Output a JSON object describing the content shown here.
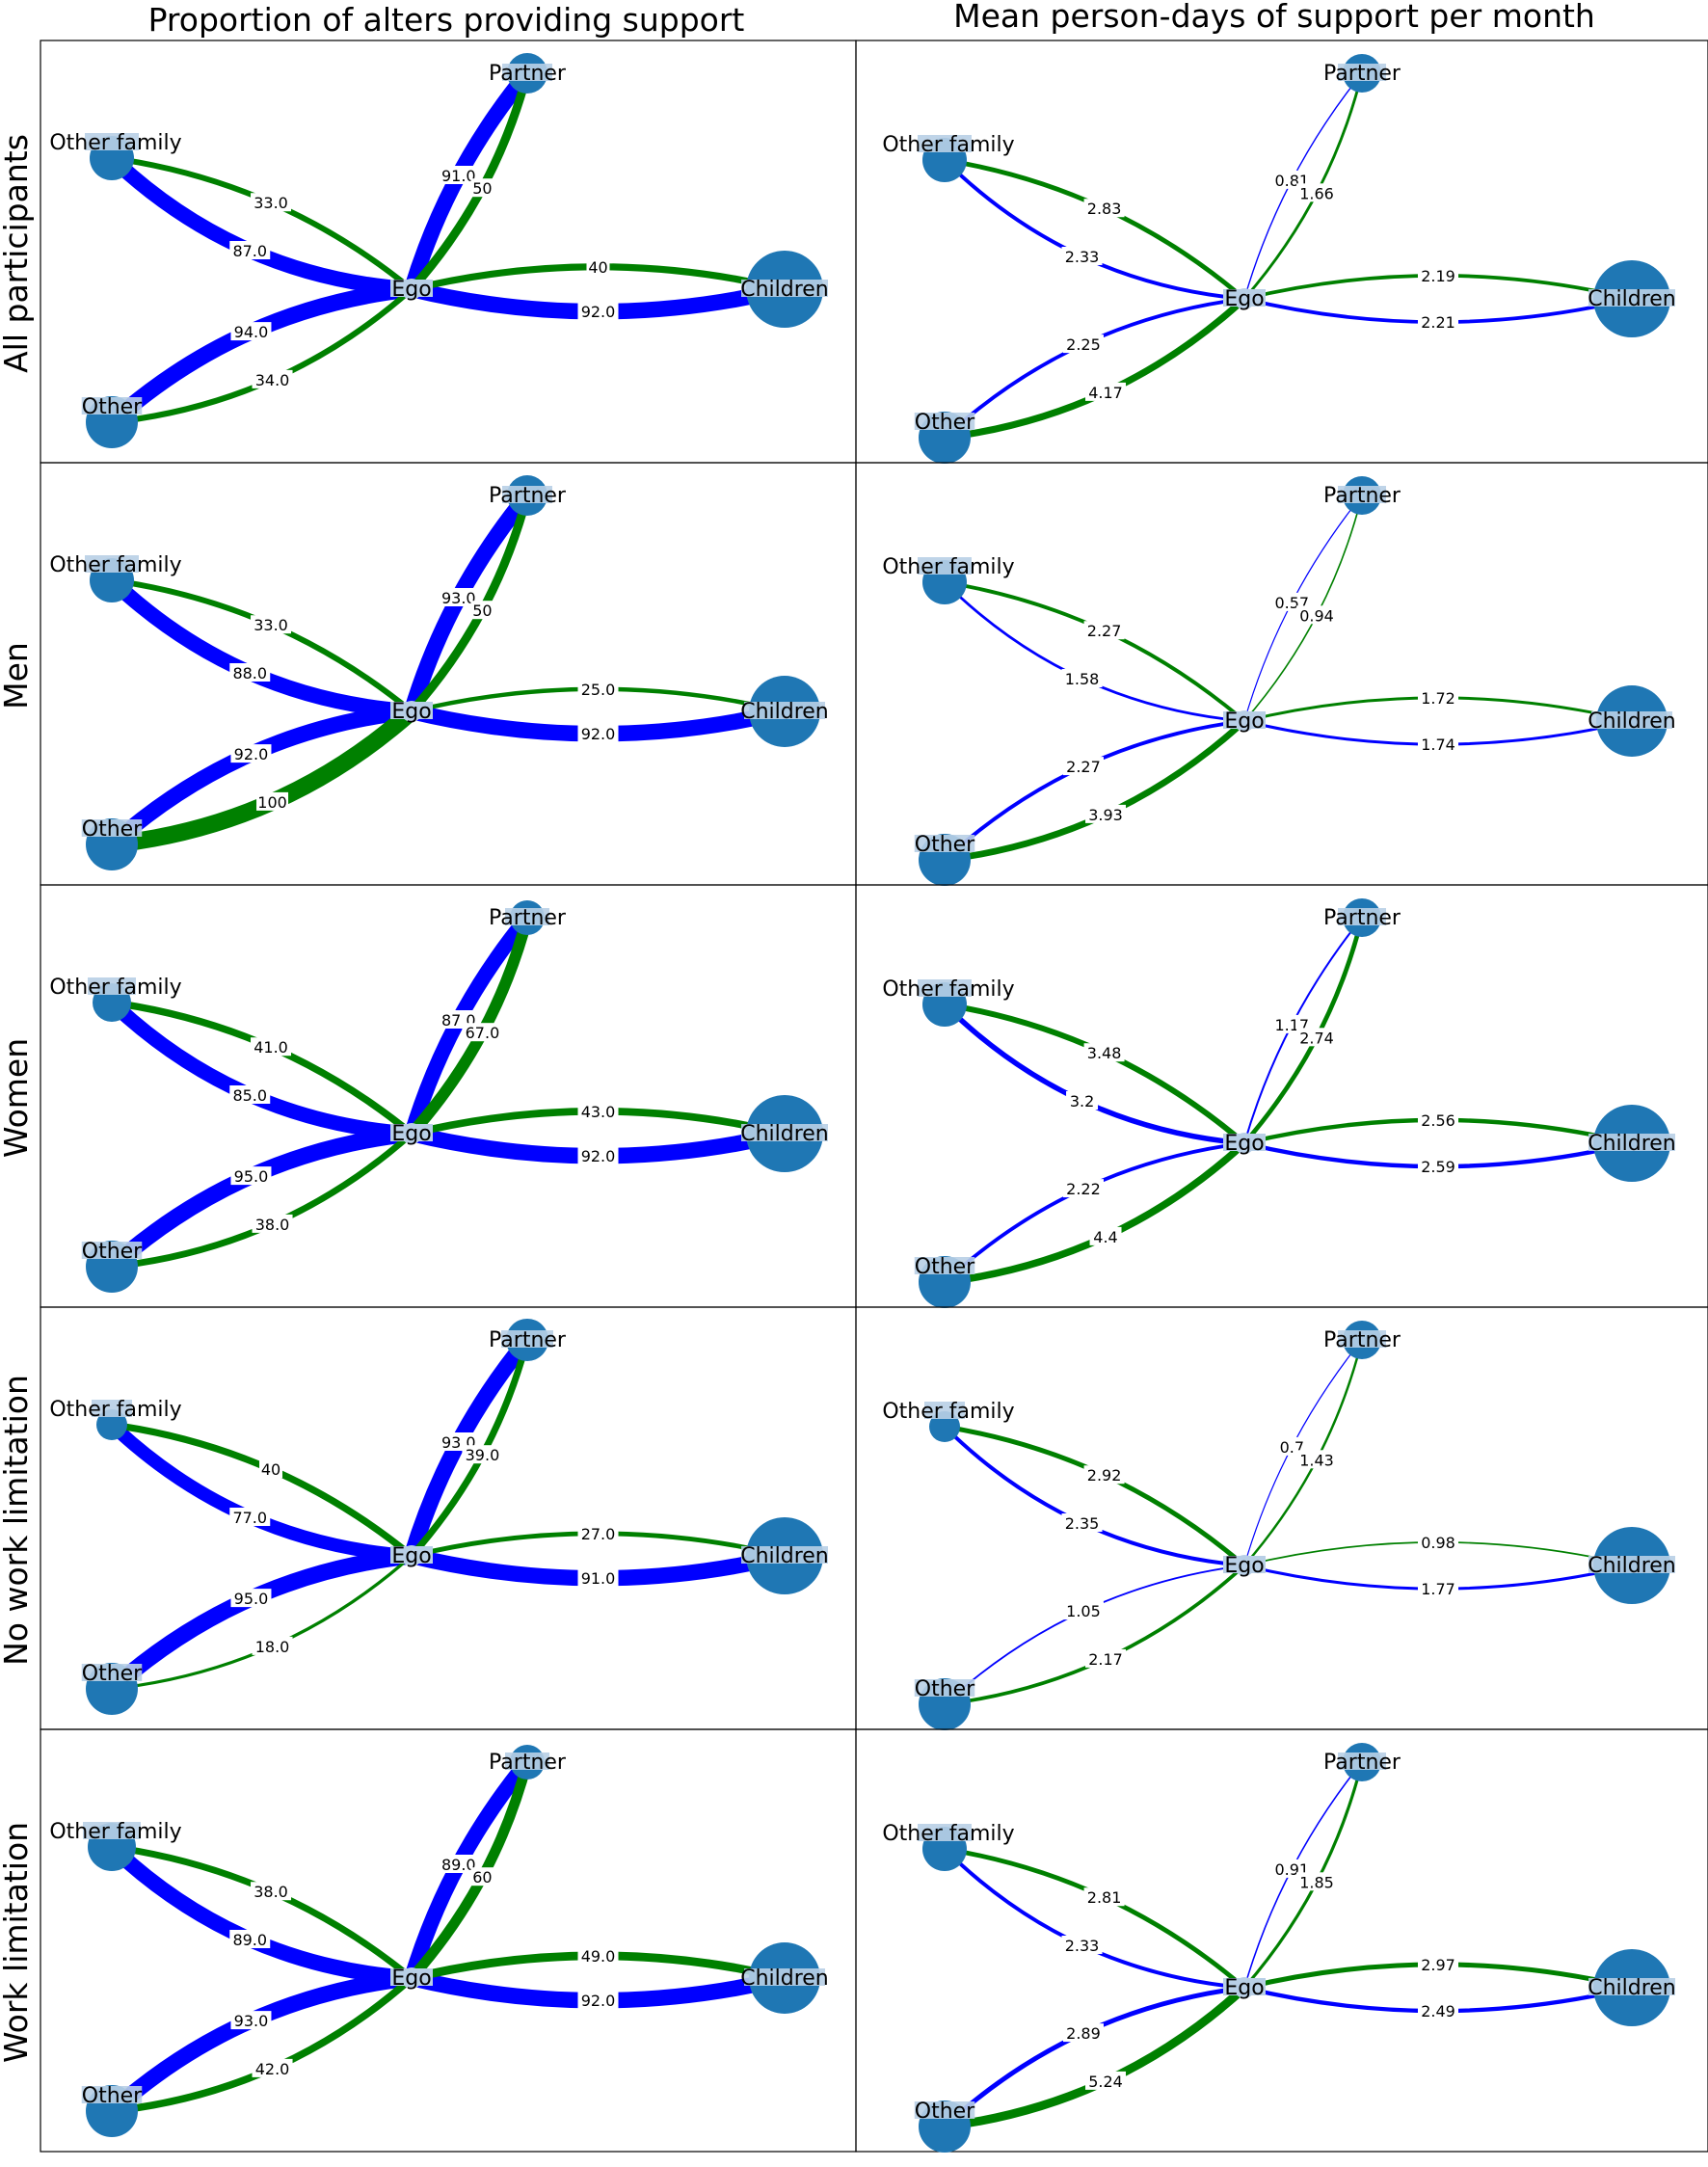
{
  "figure": {
    "column_titles": [
      "Proportion of alters providing support",
      "Mean person-days of support per month"
    ],
    "row_labels": [
      "All participants",
      "Men",
      "Women",
      "No work limitation",
      "Work limitation"
    ],
    "colors": {
      "node_fill": "#1f77b4",
      "node_label_box": "#b8cfe6",
      "edge_blue": "#0000ff",
      "edge_green": "#008000"
    }
  },
  "chart_data": {
    "type": "network",
    "nodes": [
      "Ego",
      "Partner",
      "Other family",
      "Other",
      "Children"
    ],
    "node_labels": {
      "ego": "Ego",
      "partner": "Partner",
      "other_family": "Other family",
      "other": "Other",
      "children": "Children"
    },
    "edge_color_legend": "",
    "proportion": [
      {
        "row": "All participants",
        "node_size": {
          "partner": 21,
          "other_family": 23,
          "other": 27,
          "children": 40
        },
        "edges": {
          "partner": {
            "green": "50",
            "blue": "91.0"
          },
          "other_family": {
            "blue": "87.0",
            "green": "33.0"
          },
          "other": {
            "blue": "94.0",
            "green": "34.0"
          },
          "children": {
            "green": "40",
            "blue": "92.0"
          }
        }
      },
      {
        "row": "Men",
        "node_size": {
          "partner": 21,
          "other_family": 23,
          "other": 27,
          "children": 37
        },
        "edges": {
          "partner": {
            "green": "50",
            "blue": "93.0"
          },
          "other_family": {
            "blue": "88.0",
            "green": "33.0"
          },
          "other": {
            "blue": "92.0",
            "green": "100"
          },
          "children": {
            "green": "25.0",
            "blue": "92.0"
          }
        }
      },
      {
        "row": "Women",
        "node_size": {
          "partner": 18,
          "other_family": 20,
          "other": 27,
          "children": 40
        },
        "edges": {
          "partner": {
            "green": "67.0",
            "blue": "87.0"
          },
          "other_family": {
            "blue": "85.0",
            "green": "41.0"
          },
          "other": {
            "blue": "95.0",
            "green": "38.0"
          },
          "children": {
            "green": "43.0",
            "blue": "92.0"
          }
        }
      },
      {
        "row": "No work limitation",
        "node_size": {
          "partner": 22,
          "other_family": 16,
          "other": 27,
          "children": 40
        },
        "edges": {
          "partner": {
            "green": "39.0",
            "blue": "93.0"
          },
          "other_family": {
            "blue": "77.0",
            "green": "40"
          },
          "other": {
            "blue": "95.0",
            "green": "18.0"
          },
          "children": {
            "green": "27.0",
            "blue": "91.0"
          }
        }
      },
      {
        "row": "Work limitation",
        "node_size": {
          "partner": 18,
          "other_family": 25,
          "other": 27,
          "children": 37
        },
        "edges": {
          "partner": {
            "green": "60",
            "blue": "89.0"
          },
          "other_family": {
            "blue": "89.0",
            "green": "38.0"
          },
          "other": {
            "blue": "93.0",
            "green": "42.0"
          },
          "children": {
            "green": "49.0",
            "blue": "92.0"
          }
        }
      }
    ],
    "person_days": [
      {
        "row": "All participants",
        "node_size": {
          "partner": 20,
          "other_family": 23,
          "other": 27,
          "children": 40
        },
        "edges": {
          "partner": {
            "green": "1.66",
            "blue": "0.81"
          },
          "other_family": {
            "blue": "2.33",
            "green": "2.83"
          },
          "other": {
            "blue": "2.25",
            "green": "4.17"
          },
          "children": {
            "green": "2.19",
            "blue": "2.21"
          }
        }
      },
      {
        "row": "Men",
        "node_size": {
          "partner": 20,
          "other_family": 23,
          "other": 27,
          "children": 37
        },
        "edges": {
          "partner": {
            "green": "0.94",
            "blue": "0.57"
          },
          "other_family": {
            "blue": "1.58",
            "green": "2.27"
          },
          "other": {
            "blue": "2.27",
            "green": "3.93"
          },
          "children": {
            "green": "1.72",
            "blue": "1.74"
          }
        }
      },
      {
        "row": "Women",
        "node_size": {
          "partner": 20,
          "other_family": 23,
          "other": 27,
          "children": 40
        },
        "edges": {
          "partner": {
            "green": "2.74",
            "blue": "1.17"
          },
          "other_family": {
            "blue": "3.2",
            "green": "3.48"
          },
          "other": {
            "blue": "2.22",
            "green": "4.4"
          },
          "children": {
            "green": "2.56",
            "blue": "2.59"
          }
        }
      },
      {
        "row": "No work limitation",
        "node_size": {
          "partner": 20,
          "other_family": 16,
          "other": 27,
          "children": 40
        },
        "edges": {
          "partner": {
            "green": "1.43",
            "blue": "0.7"
          },
          "other_family": {
            "blue": "2.35",
            "green": "2.92"
          },
          "other": {
            "blue": "1.05",
            "green": "2.17"
          },
          "children": {
            "green": "0.98",
            "blue": "1.77"
          }
        }
      },
      {
        "row": "Work limitation",
        "node_size": {
          "partner": 20,
          "other_family": 23,
          "other": 27,
          "children": 40
        },
        "edges": {
          "partner": {
            "green": "1.85",
            "blue": "0.91"
          },
          "other_family": {
            "blue": "2.33",
            "green": "2.81"
          },
          "other": {
            "blue": "2.89",
            "green": "5.24"
          },
          "children": {
            "green": "2.97",
            "blue": "2.49"
          }
        }
      }
    ]
  }
}
